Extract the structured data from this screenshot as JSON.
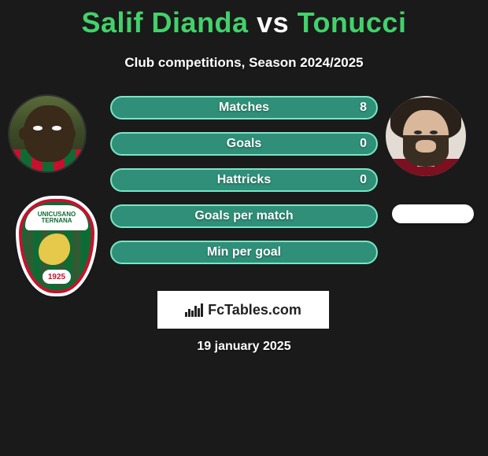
{
  "title": {
    "left": {
      "text": "Salif Dianda",
      "color": "#43d16b"
    },
    "vs": {
      "text": " vs ",
      "color": "#ffffff"
    },
    "right": {
      "text": "Tonucci",
      "color": "#43d16b"
    }
  },
  "subtitle": {
    "text": "Club competitions, Season 2024/2025",
    "color": "#ffffff"
  },
  "stats": {
    "row_bg": "#2f8f78",
    "border": "#79e6c6",
    "text_color": "#ffffff",
    "rows": [
      {
        "label": "Matches",
        "left": "",
        "right": "8"
      },
      {
        "label": "Goals",
        "left": "",
        "right": "0"
      },
      {
        "label": "Hattricks",
        "left": "",
        "right": "0"
      },
      {
        "label": "Goals per match",
        "left": "",
        "right": ""
      },
      {
        "label": "Min per goal",
        "left": "",
        "right": ""
      }
    ]
  },
  "club_left": {
    "top_text": "UNICUSANO\nTERNANA",
    "year": "1925",
    "colors": {
      "green": "#0f6b34",
      "red": "#c8102e",
      "gold": "#e6c84a",
      "white": "#ffffff"
    }
  },
  "footer": {
    "brand": "FcTables.com",
    "text_color": "#222222",
    "bg": "#ffffff"
  },
  "date": {
    "text": "19 january 2025",
    "color": "#ffffff"
  },
  "background_color": "#1a1a1a"
}
